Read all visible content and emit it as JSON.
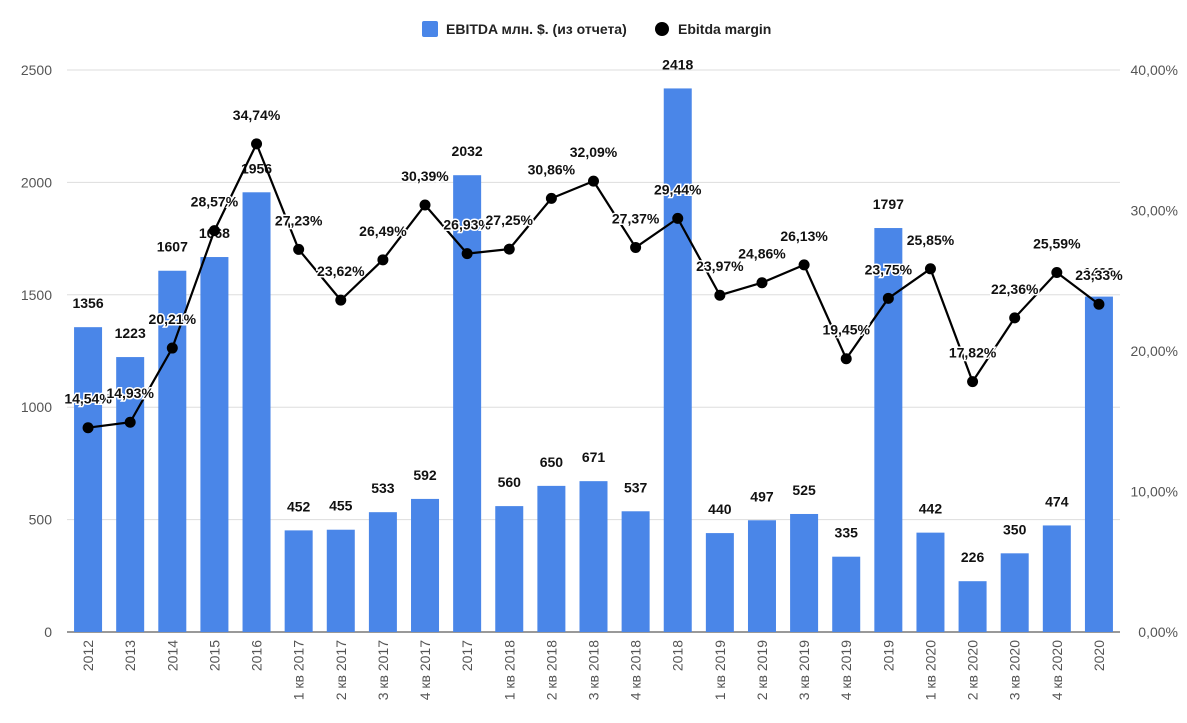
{
  "chart_data": {
    "type": "bar",
    "categories": [
      "2012",
      "2013",
      "2014",
      "2015",
      "2016",
      "1 кв 2017",
      "2 кв 2017",
      "3 кв 2017",
      "4 кв 2017",
      "2017",
      "1 кв 2018",
      "2 кв 2018",
      "3 кв 2018",
      "4 кв 2018",
      "2018",
      "1 кв 2019",
      "2 кв 2019",
      "3 кв 2019",
      "4 кв 2019",
      "2019",
      "1 кв 2020",
      "2 кв 2020",
      "3 кв 2020",
      "4 кв 2020",
      "2020"
    ],
    "series": [
      {
        "name": "EBITDA млн. $. (из отчета)",
        "type": "bar",
        "axis": "left",
        "color": "#4a86e8",
        "values": [
          1356,
          1223,
          1607,
          1668,
          1956,
          452,
          455,
          533,
          592,
          2032,
          560,
          650,
          671,
          537,
          2418,
          440,
          497,
          525,
          335,
          1797,
          442,
          226,
          350,
          474,
          1492
        ]
      },
      {
        "name": "Ebitda margin",
        "type": "line",
        "axis": "right",
        "color": "#000000",
        "values": [
          14.54,
          14.93,
          20.21,
          28.57,
          34.74,
          27.23,
          23.62,
          26.49,
          30.39,
          26.93,
          27.25,
          30.86,
          32.09,
          27.37,
          29.44,
          23.97,
          24.86,
          26.13,
          19.45,
          23.75,
          25.85,
          17.82,
          22.36,
          25.59,
          23.33
        ],
        "labels": [
          "14,54%",
          "14,93%",
          "20,21%",
          "28,57%",
          "34,74%",
          "27,23%",
          "23,62%",
          "26,49%",
          "30,39%",
          "26,93%",
          "27,25%",
          "30,86%",
          "32,09%",
          "27,37%",
          "29,44%",
          "23,97%",
          "24,86%",
          "26,13%",
          "19,45%",
          "23,75%",
          "25,85%",
          "17,82%",
          "22,36%",
          "25,59%",
          "23,33%"
        ]
      }
    ],
    "y_left": {
      "ylim": [
        0,
        2500
      ],
      "ticks": [
        0,
        500,
        1000,
        1500,
        2000,
        2500
      ],
      "tick_labels": [
        "0",
        "500",
        "1000",
        "1500",
        "2000",
        "2500"
      ]
    },
    "y_right": {
      "ylim": [
        0,
        40
      ],
      "ticks": [
        0,
        10,
        20,
        30,
        40
      ],
      "tick_labels": [
        "0,00%",
        "10,00%",
        "20,00%",
        "30,00%",
        "40,00%"
      ]
    },
    "legend": {
      "position": "top-center",
      "entries": [
        "EBITDA млн. $. (из отчета)",
        "Ebitda margin"
      ]
    },
    "grid": true,
    "title": "",
    "xlabel": "",
    "ylabel": ""
  }
}
